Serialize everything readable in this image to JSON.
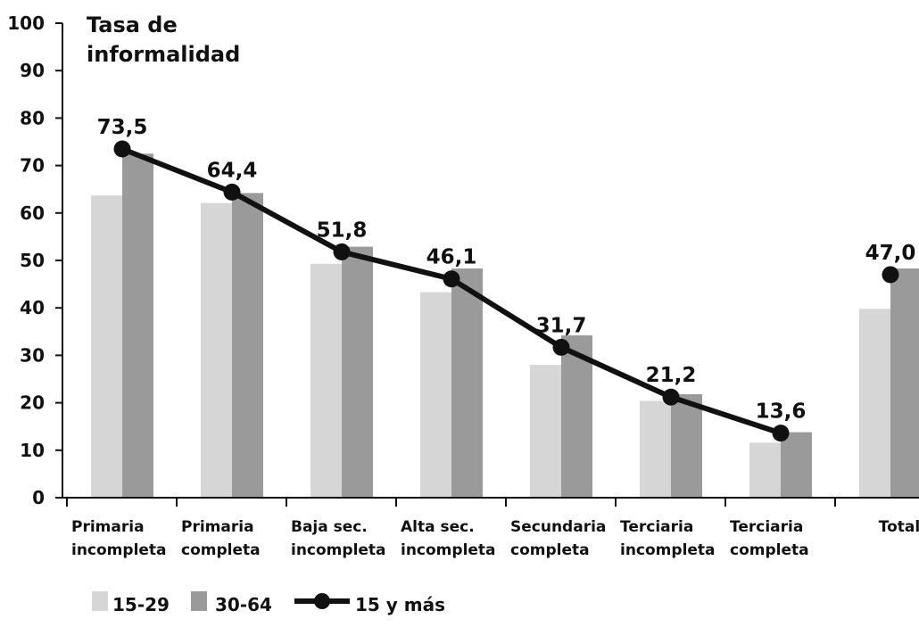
{
  "chart_data": {
    "type": "bar",
    "ylabel_lines": [
      "Tasa de",
      "informalidad"
    ],
    "ylim": [
      0,
      100
    ],
    "yticks": [
      0,
      10,
      20,
      30,
      40,
      50,
      60,
      70,
      80,
      90,
      100
    ],
    "categories": [
      [
        "Primaria",
        "incompleta"
      ],
      [
        "Primaria",
        "completa"
      ],
      [
        "Baja sec.",
        "incompleta"
      ],
      [
        "Alta sec.",
        "incompleta"
      ],
      [
        "Secundaria",
        "completa"
      ],
      [
        "Terciaria",
        "incompleta"
      ],
      [
        "Terciaria",
        "completa"
      ],
      [
        "Total"
      ]
    ],
    "series": [
      {
        "name": "15-29",
        "kind": "bar",
        "color": "#d6d6d6",
        "values": [
          63.7,
          62.1,
          49.3,
          43.3,
          28.0,
          20.4,
          11.6,
          39.8
        ]
      },
      {
        "name": "30-64",
        "kind": "bar",
        "color": "#9a9a9a",
        "values": [
          72.5,
          64.2,
          52.9,
          48.3,
          34.2,
          21.8,
          13.8,
          48.3
        ]
      },
      {
        "name": "15 y más",
        "kind": "line",
        "color": "#111111",
        "values": [
          73.5,
          64.4,
          51.8,
          46.1,
          31.7,
          21.2,
          13.6,
          47.0
        ],
        "labels": [
          "73,5",
          "64,4",
          "51,8",
          "46,1",
          "31,7",
          "21,2",
          "13,6",
          "47,0"
        ],
        "connect_last": false
      }
    ],
    "legend": {
      "placement": "bottom-left",
      "items": [
        "15-29",
        "30-64",
        "15 y más"
      ]
    },
    "grid": false
  }
}
